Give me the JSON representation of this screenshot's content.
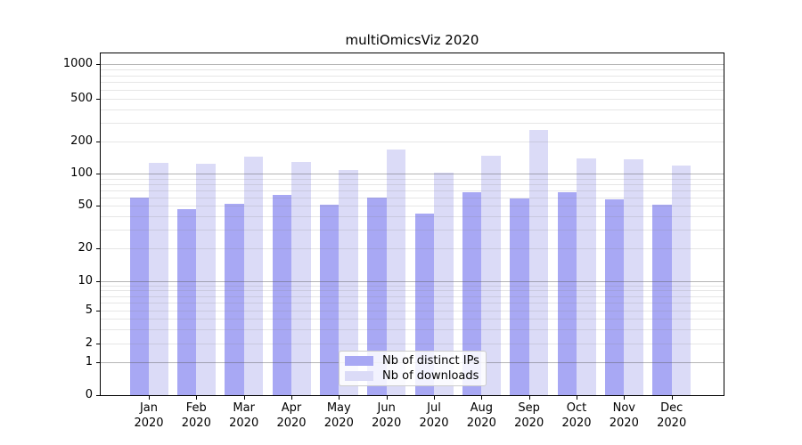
{
  "title": "multiOmicsViz 2020",
  "legend": {
    "items": [
      {
        "label": "Nb of distinct IPs",
        "color": "#a8a8f4"
      },
      {
        "label": "Nb of downloads",
        "color": "#dbdbf7"
      }
    ]
  },
  "chart_data": {
    "type": "bar",
    "title": "multiOmicsViz 2020",
    "categories": [
      "Jan 2020",
      "Feb 2020",
      "Mar 2020",
      "Apr 2020",
      "May 2020",
      "Jun 2020",
      "Jul 2020",
      "Aug 2020",
      "Sep 2020",
      "Oct 2020",
      "Nov 2020",
      "Dec 2020"
    ],
    "x_tick_months": [
      "Jan",
      "Feb",
      "Mar",
      "Apr",
      "May",
      "Jun",
      "Jul",
      "Aug",
      "Sep",
      "Oct",
      "Nov",
      "Dec"
    ],
    "x_tick_year": "2020",
    "series": [
      {
        "name": "Nb of distinct IPs",
        "color": "#a8a8f4",
        "values": [
          59,
          46,
          52,
          63,
          51,
          60,
          42,
          67,
          58,
          67,
          57,
          51
        ]
      },
      {
        "name": "Nb of downloads",
        "color": "#dbdbf7",
        "values": [
          126,
          124,
          145,
          129,
          109,
          168,
          103,
          147,
          255,
          139,
          136,
          119
        ]
      }
    ],
    "yscale": "symlog",
    "yticks": [
      0,
      1,
      2,
      5,
      10,
      20,
      50,
      100,
      200,
      500,
      1000
    ],
    "ylim": [
      0,
      1260
    ],
    "grid": "horizontal major+minor, drawn over bars",
    "legend_position": "lower center"
  }
}
